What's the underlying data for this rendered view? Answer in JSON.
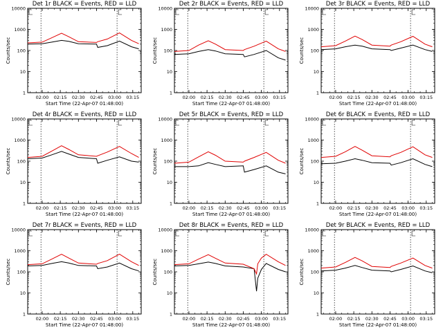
{
  "colors": {
    "events": "#000000",
    "lld": "#e00000",
    "axes": "#000000",
    "background": "#ffffff"
  },
  "chart_data": [
    {
      "panel": "det1",
      "type": "line",
      "title": "Det 1r BLACK = Events, RED = LLD",
      "xlabel": "Start Time (22-Apr-07 01:48:00)",
      "ylabel": "Counts/sec",
      "x_ticks": [
        "02:00",
        "02:15",
        "02:30",
        "02:45",
        "03:00",
        "03:15"
      ],
      "y_ticks": [
        "1",
        "10",
        "100",
        "1000",
        "10000"
      ],
      "y_scale": "log",
      "ylim": [
        1,
        10000
      ],
      "series": [
        {
          "name": "Events",
          "color": "#000000",
          "x": [
            "01:48",
            "02:00",
            "02:08",
            "02:16",
            "02:22",
            "02:30",
            "02:45",
            "02:46",
            "02:54",
            "03:04",
            "03:14",
            "03:20"
          ],
          "y": [
            200,
            210,
            250,
            300,
            270,
            210,
            200,
            140,
            170,
            280,
            150,
            120
          ]
        },
        {
          "name": "LLD",
          "color": "#e00000",
          "x": [
            "01:48",
            "02:00",
            "02:08",
            "02:16",
            "02:22",
            "02:30",
            "02:45",
            "02:46",
            "02:54",
            "03:04",
            "03:14",
            "03:20"
          ],
          "y": [
            230,
            250,
            400,
            660,
            450,
            260,
            240,
            260,
            350,
            680,
            300,
            210
          ]
        }
      ]
    },
    {
      "panel": "det2",
      "type": "line",
      "title": "Det 2r BLACK = Events, RED = LLD",
      "xlabel": "Start Time (22-Apr-07 01:48:00)",
      "ylabel": "Counts/sec",
      "x_ticks": [
        "02:00",
        "02:15",
        "02:30",
        "02:45",
        "03:00",
        "03:15"
      ],
      "y_ticks": [
        "1",
        "10",
        "100",
        "1000",
        "10000"
      ],
      "y_scale": "log",
      "ylim": [
        1,
        10000
      ],
      "series": [
        {
          "name": "Events",
          "color": "#000000",
          "x": [
            "01:48",
            "02:00",
            "02:08",
            "02:16",
            "02:22",
            "02:30",
            "02:45",
            "02:46",
            "02:54",
            "03:04",
            "03:14",
            "03:20"
          ],
          "y": [
            65,
            70,
            90,
            110,
            95,
            70,
            65,
            50,
            65,
            100,
            45,
            35
          ]
        },
        {
          "name": "LLD",
          "color": "#e00000",
          "x": [
            "01:48",
            "02:00",
            "02:08",
            "02:16",
            "02:22",
            "02:30",
            "02:45",
            "02:46",
            "02:54",
            "03:04",
            "03:14",
            "03:20"
          ],
          "y": [
            90,
            100,
            180,
            290,
            200,
            110,
            100,
            110,
            160,
            280,
            120,
            90
          ]
        }
      ]
    },
    {
      "panel": "det3",
      "type": "line",
      "title": "Det 3r BLACK = Events, RED = LLD",
      "xlabel": "Start Time (22-Apr-07 01:48:00)",
      "ylabel": "Counts/sec",
      "x_ticks": [
        "02:00",
        "02:15",
        "02:30",
        "02:45",
        "03:00",
        "03:15"
      ],
      "y_ticks": [
        "1",
        "10",
        "100",
        "1000",
        "10000"
      ],
      "y_scale": "log",
      "ylim": [
        1,
        10000
      ],
      "series": [
        {
          "name": "Events",
          "color": "#000000",
          "x": [
            "01:48",
            "02:00",
            "02:08",
            "02:16",
            "02:22",
            "02:30",
            "02:45",
            "02:46",
            "02:54",
            "03:04",
            "03:14",
            "03:20"
          ],
          "y": [
            110,
            120,
            150,
            180,
            160,
            120,
            110,
            100,
            130,
            180,
            110,
            90
          ]
        },
        {
          "name": "LLD",
          "color": "#e00000",
          "x": [
            "01:48",
            "02:00",
            "02:08",
            "02:16",
            "02:22",
            "02:30",
            "02:45",
            "02:46",
            "02:54",
            "03:04",
            "03:14",
            "03:20"
          ],
          "y": [
            150,
            170,
            280,
            480,
            330,
            180,
            160,
            180,
            260,
            470,
            200,
            150
          ]
        }
      ]
    },
    {
      "panel": "det4",
      "type": "line",
      "title": "Det 4r BLACK = Events, RED = LLD",
      "xlabel": "Start Time (22-Apr-07 01:48:00)",
      "ylabel": "Counts/sec",
      "x_ticks": [
        "02:00",
        "02:15",
        "02:30",
        "02:45",
        "03:00",
        "03:15"
      ],
      "y_ticks": [
        "1",
        "10",
        "100",
        "1000",
        "10000"
      ],
      "y_scale": "log",
      "ylim": [
        1,
        10000
      ],
      "series": [
        {
          "name": "Events",
          "color": "#000000",
          "x": [
            "01:48",
            "02:00",
            "02:08",
            "02:16",
            "02:22",
            "02:30",
            "02:45",
            "02:46",
            "02:54",
            "03:04",
            "03:14",
            "03:20"
          ],
          "y": [
            130,
            140,
            200,
            290,
            220,
            150,
            130,
            80,
            110,
            160,
            100,
            90
          ]
        },
        {
          "name": "LLD",
          "color": "#e00000",
          "x": [
            "01:48",
            "02:00",
            "02:08",
            "02:16",
            "02:22",
            "02:30",
            "02:45",
            "02:46",
            "02:54",
            "03:04",
            "03:14",
            "03:20"
          ],
          "y": [
            150,
            170,
            300,
            540,
            360,
            200,
            170,
            180,
            270,
            500,
            230,
            150
          ]
        }
      ]
    },
    {
      "panel": "det5",
      "type": "line",
      "title": "Det 5r BLACK = Events, RED = LLD",
      "xlabel": "Start Time (22-Apr-07 01:48:00)",
      "ylabel": "Counts/sec",
      "x_ticks": [
        "02:00",
        "02:15",
        "02:30",
        "02:45",
        "03:00",
        "03:15"
      ],
      "y_ticks": [
        "1",
        "10",
        "100",
        "1000",
        "10000"
      ],
      "y_scale": "log",
      "ylim": [
        1,
        10000
      ],
      "series": [
        {
          "name": "Events",
          "color": "#000000",
          "x": [
            "01:48",
            "02:00",
            "02:08",
            "02:16",
            "02:22",
            "02:30",
            "02:45",
            "02:46",
            "02:54",
            "03:04",
            "03:14",
            "03:20"
          ],
          "y": [
            55,
            55,
            60,
            85,
            70,
            55,
            60,
            30,
            40,
            60,
            30,
            25
          ]
        },
        {
          "name": "LLD",
          "color": "#e00000",
          "x": [
            "01:48",
            "02:00",
            "02:08",
            "02:16",
            "02:22",
            "02:30",
            "02:45",
            "02:46",
            "02:54",
            "03:04",
            "03:14",
            "03:20"
          ],
          "y": [
            80,
            90,
            160,
            280,
            190,
            100,
            90,
            100,
            150,
            260,
            110,
            80
          ]
        }
      ]
    },
    {
      "panel": "det6",
      "type": "line",
      "title": "Det 6r BLACK = Events, RED = LLD",
      "xlabel": "Start Time (22-Apr-07 01:48:00)",
      "ylabel": "Counts/sec",
      "x_ticks": [
        "02:00",
        "02:15",
        "02:30",
        "02:45",
        "03:00",
        "03:15"
      ],
      "y_ticks": [
        "1",
        "10",
        "100",
        "1000",
        "10000"
      ],
      "y_scale": "log",
      "ylim": [
        1,
        10000
      ],
      "series": [
        {
          "name": "Events",
          "color": "#000000",
          "x": [
            "01:48",
            "02:00",
            "02:08",
            "02:16",
            "02:22",
            "02:30",
            "02:45",
            "02:46",
            "02:54",
            "03:04",
            "03:14",
            "03:20"
          ],
          "y": [
            75,
            80,
            100,
            130,
            110,
            85,
            80,
            65,
            85,
            130,
            70,
            55
          ]
        },
        {
          "name": "LLD",
          "color": "#e00000",
          "x": [
            "01:48",
            "02:00",
            "02:08",
            "02:16",
            "02:22",
            "02:30",
            "02:45",
            "02:46",
            "02:54",
            "03:04",
            "03:14",
            "03:20"
          ],
          "y": [
            150,
            170,
            280,
            500,
            330,
            180,
            160,
            180,
            260,
            480,
            200,
            150
          ]
        }
      ]
    },
    {
      "panel": "det7",
      "type": "line",
      "title": "Det 7r BLACK = Events, RED = LLD",
      "xlabel": "Start Time (22-Apr-07 01:48:00)",
      "ylabel": "Counts/sec",
      "x_ticks": [
        "02:00",
        "02:15",
        "02:30",
        "02:45",
        "03:00",
        "03:15"
      ],
      "y_ticks": [
        "1",
        "10",
        "100",
        "1000",
        "10000"
      ],
      "y_scale": "log",
      "ylim": [
        1,
        10000
      ],
      "series": [
        {
          "name": "Events",
          "color": "#000000",
          "x": [
            "01:48",
            "02:00",
            "02:08",
            "02:16",
            "02:22",
            "02:30",
            "02:45",
            "02:46",
            "02:54",
            "03:04",
            "03:14",
            "03:20"
          ],
          "y": [
            190,
            200,
            250,
            300,
            260,
            200,
            190,
            140,
            170,
            260,
            140,
            110
          ]
        },
        {
          "name": "LLD",
          "color": "#e00000",
          "x": [
            "01:48",
            "02:00",
            "02:08",
            "02:16",
            "02:22",
            "02:30",
            "02:45",
            "02:46",
            "02:54",
            "03:04",
            "03:14",
            "03:20"
          ],
          "y": [
            220,
            240,
            400,
            680,
            450,
            260,
            230,
            250,
            340,
            690,
            300,
            200
          ]
        }
      ]
    },
    {
      "panel": "det8",
      "type": "line",
      "title": "Det 8r BLACK = Events, RED = LLD",
      "xlabel": "Start Time (22-Apr-07 01:48:00)",
      "ylabel": "Counts/sec",
      "x_ticks": [
        "02:00",
        "02:15",
        "02:30",
        "02:45",
        "03:00",
        "03:15"
      ],
      "y_ticks": [
        "1",
        "10",
        "100",
        "1000",
        "10000"
      ],
      "y_scale": "log",
      "ylim": [
        1,
        10000
      ],
      "series": [
        {
          "name": "Events",
          "color": "#000000",
          "x": [
            "01:48",
            "02:00",
            "02:08",
            "02:16",
            "02:22",
            "02:30",
            "02:45",
            "02:54",
            "02:56",
            "02:57",
            "03:00",
            "03:04",
            "03:14",
            "03:20"
          ],
          "y": [
            190,
            200,
            240,
            290,
            250,
            190,
            170,
            140,
            12,
            50,
            130,
            250,
            130,
            100
          ]
        },
        {
          "name": "LLD",
          "color": "#e00000",
          "x": [
            "01:48",
            "02:00",
            "02:08",
            "02:16",
            "02:22",
            "02:30",
            "02:45",
            "02:54",
            "02:56",
            "02:57",
            "03:00",
            "03:04",
            "03:14",
            "03:20"
          ],
          "y": [
            220,
            240,
            400,
            650,
            440,
            260,
            230,
            140,
            80,
            240,
            450,
            680,
            300,
            200
          ]
        }
      ]
    },
    {
      "panel": "det9",
      "type": "line",
      "title": "Det 9r BLACK = Events, RED = LLD",
      "xlabel": "Start Time (22-Apr-07 01:48:00)",
      "ylabel": "Counts/sec",
      "x_ticks": [
        "02:00",
        "02:15",
        "02:30",
        "02:45",
        "03:00",
        "03:15"
      ],
      "y_ticks": [
        "1",
        "10",
        "100",
        "1000",
        "10000"
      ],
      "y_scale": "log",
      "ylim": [
        1,
        10000
      ],
      "series": [
        {
          "name": "Events",
          "color": "#000000",
          "x": [
            "01:48",
            "02:00",
            "02:08",
            "02:16",
            "02:22",
            "02:30",
            "02:45",
            "02:46",
            "02:54",
            "03:04",
            "03:14",
            "03:20"
          ],
          "y": [
            110,
            120,
            150,
            200,
            160,
            120,
            110,
            100,
            130,
            190,
            110,
            90
          ]
        },
        {
          "name": "LLD",
          "color": "#e00000",
          "x": [
            "01:48",
            "02:00",
            "02:08",
            "02:16",
            "02:22",
            "02:30",
            "02:45",
            "02:46",
            "02:54",
            "03:04",
            "03:14",
            "03:20"
          ],
          "y": [
            150,
            170,
            280,
            480,
            330,
            180,
            160,
            180,
            260,
            450,
            200,
            150
          ]
        }
      ]
    }
  ]
}
